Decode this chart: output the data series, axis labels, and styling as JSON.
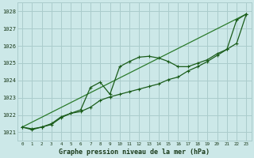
{
  "title": "Graphe pression niveau de la mer (hPa)",
  "background_color": "#cce8e8",
  "grid_color": "#aacccc",
  "line_color_dark": "#1a5c1a",
  "line_color_light": "#2a7a2a",
  "xlim": [
    -0.5,
    23.5
  ],
  "ylim": [
    1020.5,
    1028.5
  ],
  "yticks": [
    1021,
    1022,
    1023,
    1024,
    1025,
    1026,
    1027,
    1028
  ],
  "xticks": [
    0,
    1,
    2,
    3,
    4,
    5,
    6,
    7,
    8,
    9,
    10,
    11,
    12,
    13,
    14,
    15,
    16,
    17,
    18,
    19,
    20,
    21,
    22,
    23
  ],
  "series1_x": [
    0,
    1,
    2,
    3,
    4,
    5,
    6,
    7,
    8,
    9,
    10,
    11,
    12,
    13,
    14,
    15,
    16,
    17,
    18,
    19,
    20,
    21,
    22,
    23
  ],
  "series1_y": [
    1021.3,
    1021.2,
    1021.3,
    1021.5,
    1021.9,
    1022.1,
    1022.3,
    1023.6,
    1023.9,
    1023.2,
    1024.8,
    1025.1,
    1025.35,
    1025.4,
    1025.3,
    1025.1,
    1024.8,
    1024.8,
    1025.0,
    1025.2,
    1025.55,
    1025.8,
    1027.5,
    1027.85
  ],
  "series2_x": [
    0,
    1,
    2,
    3,
    4,
    5,
    6,
    7,
    8,
    9,
    10,
    11,
    12,
    13,
    14,
    15,
    16,
    17,
    18,
    19,
    20,
    21,
    22,
    23
  ],
  "series2_y": [
    1021.3,
    1021.15,
    1021.3,
    1021.45,
    1021.85,
    1022.1,
    1022.2,
    1022.45,
    1022.85,
    1023.05,
    1023.2,
    1023.35,
    1023.5,
    1023.65,
    1023.8,
    1024.05,
    1024.2,
    1024.55,
    1024.8,
    1025.1,
    1025.45,
    1025.8,
    1026.15,
    1027.85
  ],
  "series3_x": [
    0,
    23
  ],
  "series3_y": [
    1021.3,
    1027.85
  ]
}
